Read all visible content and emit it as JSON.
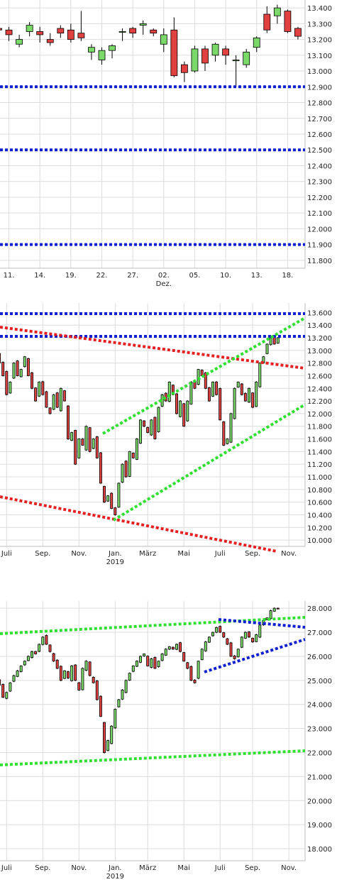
{
  "colors": {
    "up": "#7bd96a",
    "down": "#e04040",
    "wick": "#000000",
    "grid": "#dcdcdc",
    "blue_line": "#1020d0",
    "red_line": "#e52020",
    "green_line": "#30e030"
  },
  "chart_data": [
    {
      "type": "candlestick",
      "title": "",
      "ylim": [
        11.75,
        13.45
      ],
      "y_ticks": [
        "13.400",
        "13.300",
        "13.200",
        "13.100",
        "13.000",
        "12.900",
        "12.800",
        "12.700",
        "12.600",
        "12.500",
        "12.400",
        "12.300",
        "12.200",
        "12.100",
        "12.000",
        "11.900",
        "11.800"
      ],
      "x_tick_labels": [
        {
          "label": "11.",
          "sub": "",
          "index": 1
        },
        {
          "label": "14.",
          "sub": "",
          "index": 4
        },
        {
          "label": "19.",
          "sub": "",
          "index": 7
        },
        {
          "label": "22.",
          "sub": "",
          "index": 10
        },
        {
          "label": "27.",
          "sub": "",
          "index": 13
        },
        {
          "label": "02.",
          "sub": "Dez.",
          "index": 16
        },
        {
          "label": "05.",
          "sub": "",
          "index": 19
        },
        {
          "label": "10.",
          "sub": "",
          "index": 22
        },
        {
          "label": "13.",
          "sub": "",
          "index": 25
        },
        {
          "label": "18.",
          "sub": "",
          "index": 28
        }
      ],
      "candles": [
        [
          13.27,
          13.3,
          13.22,
          13.26
        ],
        [
          13.26,
          13.28,
          13.19,
          13.23
        ],
        [
          13.17,
          13.23,
          13.15,
          13.2
        ],
        [
          13.25,
          13.31,
          13.22,
          13.29
        ],
        [
          13.25,
          13.28,
          13.18,
          13.23
        ],
        [
          13.2,
          13.24,
          13.16,
          13.18
        ],
        [
          13.27,
          13.29,
          13.21,
          13.24
        ],
        [
          13.26,
          13.3,
          13.18,
          13.2
        ],
        [
          13.24,
          13.38,
          13.19,
          13.21
        ],
        [
          13.12,
          13.17,
          13.07,
          13.15
        ],
        [
          13.07,
          13.15,
          13.04,
          13.13
        ],
        [
          13.13,
          13.17,
          13.08,
          13.16
        ],
        [
          13.25,
          13.27,
          13.19,
          13.25
        ],
        [
          13.27,
          13.28,
          13.21,
          13.24
        ],
        [
          13.29,
          13.32,
          13.23,
          13.3
        ],
        [
          13.26,
          13.27,
          13.22,
          13.24
        ],
        [
          13.17,
          13.27,
          13.12,
          13.23
        ],
        [
          13.26,
          13.34,
          12.96,
          12.97
        ],
        [
          13.04,
          13.06,
          12.93,
          12.99
        ],
        [
          13.0,
          13.16,
          12.99,
          13.14
        ],
        [
          13.14,
          13.16,
          13.0,
          13.05
        ],
        [
          13.1,
          13.18,
          13.06,
          13.17
        ],
        [
          13.14,
          13.16,
          13.04,
          13.1
        ],
        [
          13.07,
          13.1,
          12.9,
          13.07
        ],
        [
          13.04,
          13.14,
          13.02,
          13.12
        ],
        [
          13.15,
          13.22,
          13.12,
          13.21
        ],
        [
          13.36,
          13.41,
          13.24,
          13.26
        ],
        [
          13.35,
          13.42,
          13.3,
          13.4
        ],
        [
          13.38,
          13.39,
          13.24,
          13.25
        ],
        [
          13.27,
          13.28,
          13.2,
          13.22
        ],
        [
          13.22,
          13.24,
          13.14,
          13.21
        ],
        [
          13.2,
          13.32,
          13.19,
          13.3
        ]
      ],
      "hlines": [
        12.9,
        12.5,
        11.9
      ]
    },
    {
      "type": "candlestick",
      "title": "",
      "ylim": [
        9.9,
        13.75
      ],
      "y_ticks": [
        "13.600",
        "13.400",
        "13.200",
        "13.000",
        "12.800",
        "12.600",
        "12.400",
        "12.200",
        "12.000",
        "11.800",
        "11.600",
        "11.400",
        "11.200",
        "11.000",
        "10.800",
        "10.600",
        "10.400",
        "10.200",
        "10.000"
      ],
      "x_tick_labels": [
        {
          "label": "Juli",
          "sub": "",
          "index": 3
        },
        {
          "label": "Sep.",
          "sub": "",
          "index": 13
        },
        {
          "label": "Nov.",
          "sub": "",
          "index": 23
        },
        {
          "label": "Jan.",
          "sub": "2019",
          "index": 33
        },
        {
          "label": "März",
          "sub": "",
          "index": 42
        },
        {
          "label": "Mai",
          "sub": "",
          "index": 52
        },
        {
          "label": "Juli",
          "sub": "",
          "index": 62
        },
        {
          "label": "Sep.",
          "sub": "",
          "index": 71
        },
        {
          "label": "Nov.",
          "sub": "",
          "index": 81
        }
      ],
      "closes": [
        13.0,
        12.8,
        12.6,
        12.3,
        12.5,
        12.8,
        12.6,
        12.7,
        12.9,
        12.6,
        12.4,
        12.2,
        12.5,
        12.3,
        12.1,
        12.0,
        12.3,
        12.1,
        12.4,
        12.2,
        11.6,
        11.7,
        11.2,
        11.6,
        11.5,
        11.8,
        11.4,
        11.6,
        11.3,
        10.9,
        10.6,
        10.7,
        10.5,
        10.4,
        10.9,
        11.2,
        11.0,
        11.4,
        11.3,
        11.6,
        11.9,
        11.8,
        11.7,
        11.9,
        11.6,
        12.1,
        12.3,
        12.2,
        12.5,
        12.3,
        12.0,
        12.2,
        11.8,
        12.2,
        12.5,
        12.4,
        12.7,
        12.6,
        12.4,
        12.2,
        12.5,
        12.3,
        11.9,
        11.5,
        11.6,
        12.0,
        12.4,
        12.5,
        12.3,
        12.2,
        12.4,
        12.1,
        12.5,
        12.8,
        12.9,
        13.1,
        13.2,
        13.1,
        13.2
      ]
    },
    {
      "type": "candlestick",
      "title": "",
      "ylim": [
        17.5,
        28.3
      ],
      "y_ticks": [
        "28.000",
        "27.000",
        "26.000",
        "25.000",
        "24.000",
        "23.000",
        "22.000",
        "21.000",
        "20.000",
        "19.000",
        "18.000"
      ],
      "x_tick_labels": [
        {
          "label": "Juli",
          "sub": "",
          "index": 3
        },
        {
          "label": "Sep.",
          "sub": "",
          "index": 13
        },
        {
          "label": "Nov.",
          "sub": "",
          "index": 23
        },
        {
          "label": "Jan.",
          "sub": "2019",
          "index": 33
        },
        {
          "label": "März",
          "sub": "",
          "index": 42
        },
        {
          "label": "Mai",
          "sub": "",
          "index": 52
        },
        {
          "label": "Juli",
          "sub": "",
          "index": 62
        },
        {
          "label": "Sep.",
          "sub": "",
          "index": 71
        },
        {
          "label": "Nov.",
          "sub": "",
          "index": 81
        }
      ],
      "closes": [
        25.1,
        24.8,
        24.3,
        24.5,
        24.9,
        25.2,
        25.4,
        25.6,
        25.8,
        26.0,
        26.2,
        26.1,
        26.5,
        26.8,
        26.5,
        26.2,
        25.8,
        25.5,
        25.0,
        25.4,
        25.1,
        25.6,
        25.0,
        24.6,
        25.5,
        25.8,
        25.2,
        24.9,
        24.2,
        23.5,
        22.0,
        22.5,
        23.1,
        23.8,
        24.2,
        24.6,
        25.0,
        25.3,
        25.6,
        25.8,
        26.0,
        26.1,
        25.6,
        25.9,
        25.5,
        25.8,
        26.1,
        26.3,
        26.4,
        26.3,
        26.5,
        26.2,
        25.8,
        25.5,
        25.0,
        24.9,
        25.8,
        26.3,
        26.6,
        26.8,
        27.0,
        27.2,
        27.0,
        26.8,
        26.5,
        26.0,
        25.9,
        26.3,
        26.8,
        27.0,
        26.8,
        26.6,
        26.9,
        27.3,
        27.5,
        27.6,
        27.9,
        28.0,
        28.0
      ]
    }
  ]
}
